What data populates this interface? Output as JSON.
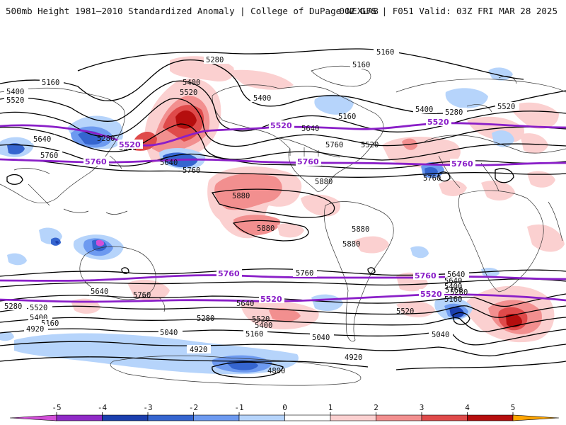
{
  "header": {
    "title": "500mb Height 1981–2010 Standardized Anomaly | College of DuPage NEXLAB",
    "run_info": "00Z GFS | F051 Valid: 03Z FRI MAR 28 2025"
  },
  "map": {
    "contour_labels": [
      "5160",
      "5280",
      "5160",
      "5400",
      "5520",
      "5400",
      "5520",
      "5640",
      "5520",
      "5760",
      "5640",
      "5760",
      "5280",
      "5400",
      "5400",
      "5520",
      "5640",
      "5160",
      "5160",
      "5280",
      "5400",
      "5520",
      "5760",
      "5760",
      "5880",
      "5880",
      "5880",
      "5880",
      "5880",
      "5760",
      "5760",
      "5640",
      "5760",
      "5640",
      "5520",
      "5280",
      "5400",
      "5520",
      "5640",
      "5520",
      "5160",
      "5040",
      "4920",
      "5280",
      "5400",
      "5160",
      "5040",
      "5040",
      "4920",
      "4920",
      "4800",
      "5640",
      "5400",
      "5280",
      "5160"
    ],
    "clim_labels": [
      "5520",
      "5760",
      "5520",
      "5760",
      "5520",
      "5760",
      "5760",
      "5520",
      "5760",
      "5520"
    ]
  },
  "colorbar": {
    "ticks": [
      "-5",
      "-4",
      "-3",
      "-2",
      "-1",
      "0",
      "1",
      "2",
      "3",
      "4",
      "5"
    ],
    "colors": [
      "#d24fd8",
      "#8f2ac6",
      "#1b3fae",
      "#3565cf",
      "#6d9af0",
      "#b6d4fb",
      "#ffffff",
      "#fbd0d0",
      "#f28f8f",
      "#df4a4a",
      "#b50e0e",
      "#ffa500"
    ]
  }
}
